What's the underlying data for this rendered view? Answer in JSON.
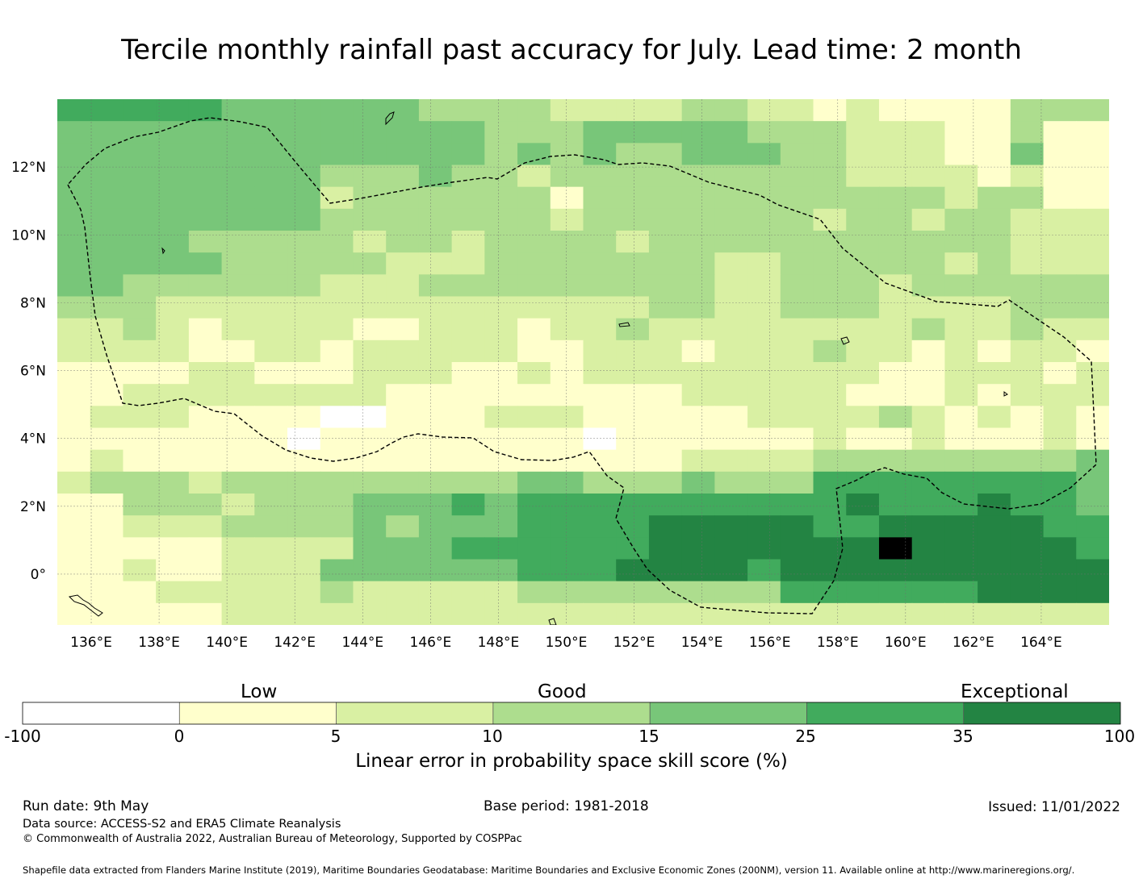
{
  "title": "Tercile monthly rainfall past accuracy for July. Lead time: 2 month",
  "map": {
    "lon_range": [
      135,
      166
    ],
    "lat_range": [
      -1.5,
      14
    ],
    "lon_ticks": [
      "136°E",
      "138°E",
      "140°E",
      "142°E",
      "144°E",
      "146°E",
      "148°E",
      "150°E",
      "152°E",
      "154°E",
      "156°E",
      "158°E",
      "160°E",
      "162°E",
      "164°E"
    ],
    "lat_ticks": [
      "12°N",
      "10°N",
      "8°N",
      "6°N",
      "4°N",
      "2°N",
      "0°"
    ],
    "grid_levels": [
      "55555444444333322223322121111333",
      "44444444444443334444433322211311",
      "44444444444443434334443322211411",
      "44444444333433233333333322221211",
      "44444444233333313333333333323311",
      "44444444333333323333333233233222",
      "44443333323323333233333333333222",
      "44444333332223333333223333323222",
      "44333333222333333333223332333333",
      "33322222222222222233223332222333",
      "22321222211222122322222222322322",
      "22221122122222112221222322121221",
      "11112211122211212222222221122212",
      "11222222221111111112222211121222",
      "12221111001112221111122223212121",
      "11111110111111110111111211211121",
      "12111111111111111112222333333334",
      "23332333333333443334333555555554",
      "11333233344454555555555565556554",
      "11222333343444555566666556666655",
      "11111222244455555566666667666665",
      "11211222444444555666656666666666",
      "11122222322222333333335555556666",
      "11111222222222222222222222222222"
    ]
  },
  "legend": {
    "categories": [
      "Low",
      "Good",
      "Exceptional"
    ],
    "boundaries": [
      "-100",
      "0",
      "5",
      "10",
      "15",
      "25",
      "35",
      "100"
    ],
    "colors": [
      "#ffffff",
      "#ffffcc",
      "#d9f0a3",
      "#addd8e",
      "#78c679",
      "#41ab5d",
      "#238443"
    ],
    "title": "Linear error in probability space skill score (%)"
  },
  "footer": {
    "run_date": "Run date: 9th May",
    "base_period": "Base period: 1981-2018",
    "issued": "Issued: 11/01/2022",
    "data_source": "Data source: ACCESS-S2 and ERA5 Climate Reanalysis",
    "copyright": "© Commonwealth of Australia 2022, Australian Bureau of Meteorology, Supported by COSPPac",
    "shapefile": "Shapefile data extracted from Flanders Marine Institute (2019), Maritime Boundaries Geodatabase: Maritime Boundaries and Exclusive Economic Zones (200NM), version 11. Available online at http://www.marineregions.org/."
  }
}
